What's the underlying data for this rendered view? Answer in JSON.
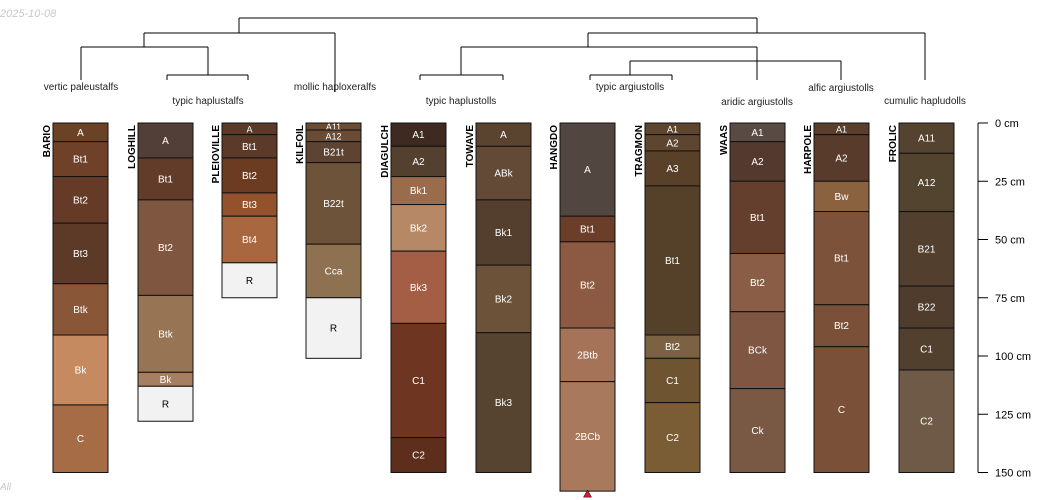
{
  "date_text": "2025-10-08",
  "corner_text": "All",
  "chart_data": {
    "type": "soil-profile-sketch",
    "depth_unit": "cm",
    "depth_range": [
      0,
      150
    ],
    "depth_axis_ticks": [
      {
        "depth": 0,
        "label": "0 cm"
      },
      {
        "depth": 25,
        "label": "25 cm"
      },
      {
        "depth": 50,
        "label": "50 cm"
      },
      {
        "depth": 75,
        "label": "75 cm"
      },
      {
        "depth": 100,
        "label": "100 cm"
      },
      {
        "depth": 125,
        "label": "125 cm"
      },
      {
        "depth": 150,
        "label": "150 cm"
      }
    ],
    "taxa": [
      "vertic paleustalfs",
      "typic haplustalfs",
      "mollic haploxeralfs",
      "typic haplustolls",
      "typic argiustolls",
      "aridic argiustolls",
      "alfic argiustolls",
      "cumulic hapludolls"
    ],
    "profiles": [
      {
        "name": "BARIO",
        "horizons": [
          {
            "name": "A",
            "top": 0,
            "bottom": 8,
            "color": "#6b4226"
          },
          {
            "name": "Bt1",
            "top": 8,
            "bottom": 23,
            "color": "#6f4128"
          },
          {
            "name": "Bt2",
            "top": 23,
            "bottom": 43,
            "color": "#653a26"
          },
          {
            "name": "Bt3",
            "top": 43,
            "bottom": 69,
            "color": "#5c3a27"
          },
          {
            "name": "Btk",
            "top": 69,
            "bottom": 91,
            "color": "#8a5638"
          },
          {
            "name": "Bk",
            "top": 91,
            "bottom": 121,
            "color": "#c58a5f"
          },
          {
            "name": "C",
            "top": 121,
            "bottom": 150,
            "color": "#a56c45"
          }
        ]
      },
      {
        "name": "LOGHILL",
        "horizons": [
          {
            "name": "A",
            "top": 0,
            "bottom": 15,
            "color": "#524038"
          },
          {
            "name": "Bt1",
            "top": 15,
            "bottom": 33,
            "color": "#633c29"
          },
          {
            "name": "Bt2",
            "top": 33,
            "bottom": 74,
            "color": "#7f5640"
          },
          {
            "name": "Btk",
            "top": 74,
            "bottom": 107,
            "color": "#977454"
          },
          {
            "name": "Bk",
            "top": 107,
            "bottom": 113,
            "color": "#a67e62"
          },
          {
            "name": "R",
            "top": 113,
            "bottom": 128,
            "color": "#f2f2f2"
          }
        ]
      },
      {
        "name": "PLEIOVILLE",
        "horizons": [
          {
            "name": "A",
            "top": 0,
            "bottom": 5,
            "color": "#5a3a28"
          },
          {
            "name": "Bt1",
            "top": 5,
            "bottom": 15,
            "color": "#5c3a2a"
          },
          {
            "name": "Bt2",
            "top": 15,
            "bottom": 30,
            "color": "#6c3c22"
          },
          {
            "name": "Bt3",
            "top": 30,
            "bottom": 40,
            "color": "#93522c"
          },
          {
            "name": "Bt4",
            "top": 40,
            "bottom": 60,
            "color": "#a8673f"
          },
          {
            "name": "R",
            "top": 60,
            "bottom": 75,
            "color": "#f2f2f2"
          }
        ]
      },
      {
        "name": "KILFOIL",
        "horizons": [
          {
            "name": "A11",
            "top": 0,
            "bottom": 3,
            "color": "#6a4c34"
          },
          {
            "name": "A12",
            "top": 3,
            "bottom": 8,
            "color": "#6a4c34"
          },
          {
            "name": "B21t",
            "top": 8,
            "bottom": 17,
            "color": "#5d4432"
          },
          {
            "name": "B22t",
            "top": 17,
            "bottom": 52,
            "color": "#6d5339"
          },
          {
            "name": "Cca",
            "top": 52,
            "bottom": 75,
            "color": "#8e7150"
          },
          {
            "name": "R",
            "top": 75,
            "bottom": 101,
            "color": "#f2f2f2"
          }
        ]
      },
      {
        "name": "DIAGULCH",
        "horizons": [
          {
            "name": "A1",
            "top": 0,
            "bottom": 10,
            "color": "#3e2a20"
          },
          {
            "name": "A2",
            "top": 10,
            "bottom": 23,
            "color": "#54402f"
          },
          {
            "name": "Bk1",
            "top": 23,
            "bottom": 35,
            "color": "#9a6c4c"
          },
          {
            "name": "Bk2",
            "top": 35,
            "bottom": 55,
            "color": "#b68866"
          },
          {
            "name": "Bk3",
            "top": 55,
            "bottom": 86,
            "color": "#a35e45"
          },
          {
            "name": "C1",
            "top": 86,
            "bottom": 135,
            "color": "#6e3521"
          },
          {
            "name": "C2",
            "top": 135,
            "bottom": 150,
            "color": "#5e2e1d"
          }
        ]
      },
      {
        "name": "TOWAVE",
        "horizons": [
          {
            "name": "A",
            "top": 0,
            "bottom": 10,
            "color": "#5a432f"
          },
          {
            "name": "ABk",
            "top": 10,
            "bottom": 33,
            "color": "#634a36"
          },
          {
            "name": "Bk1",
            "top": 33,
            "bottom": 61,
            "color": "#543f2e"
          },
          {
            "name": "Bk2",
            "top": 61,
            "bottom": 90,
            "color": "#6b5238"
          },
          {
            "name": "Bk3",
            "top": 90,
            "bottom": 150,
            "color": "#574430"
          }
        ]
      },
      {
        "name": "HANGDO",
        "horizons": [
          {
            "name": "A",
            "top": 0,
            "bottom": 40,
            "color": "#524640"
          },
          {
            "name": "Bt1",
            "top": 40,
            "bottom": 51,
            "color": "#6b3e2a"
          },
          {
            "name": "Bt2",
            "top": 51,
            "bottom": 88,
            "color": "#8c5a43"
          },
          {
            "name": "2Btb",
            "top": 88,
            "bottom": 111,
            "color": "#a57358"
          },
          {
            "name": "2BCb",
            "top": 111,
            "bottom": 158,
            "color": "#a8795c"
          }
        ]
      },
      {
        "name": "TRAGMON",
        "horizons": [
          {
            "name": "A1",
            "top": 0,
            "bottom": 5,
            "color": "#5d4530"
          },
          {
            "name": "A2",
            "top": 5,
            "bottom": 12,
            "color": "#5d4530"
          },
          {
            "name": "A3",
            "top": 12,
            "bottom": 27,
            "color": "#594129"
          },
          {
            "name": "Bt1",
            "top": 27,
            "bottom": 91,
            "color": "#554029"
          },
          {
            "name": "Bt2",
            "top": 91,
            "bottom": 101,
            "color": "#7a6242"
          },
          {
            "name": "C1",
            "top": 101,
            "bottom": 120,
            "color": "#6e5431"
          },
          {
            "name": "C2",
            "top": 120,
            "bottom": 150,
            "color": "#7a5c35"
          }
        ]
      },
      {
        "name": "WAAS",
        "horizons": [
          {
            "name": "A1",
            "top": 0,
            "bottom": 8,
            "color": "#5a4a44"
          },
          {
            "name": "A2",
            "top": 8,
            "bottom": 25,
            "color": "#543a2e"
          },
          {
            "name": "Bt1",
            "top": 25,
            "bottom": 56,
            "color": "#643f2d"
          },
          {
            "name": "Bt2",
            "top": 56,
            "bottom": 81,
            "color": "#8a5d46"
          },
          {
            "name": "BCk",
            "top": 81,
            "bottom": 114,
            "color": "#7e5641"
          },
          {
            "name": "Ck",
            "top": 114,
            "bottom": 150,
            "color": "#7a5944"
          }
        ]
      },
      {
        "name": "HARPOLE",
        "horizons": [
          {
            "name": "A1",
            "top": 0,
            "bottom": 5,
            "color": "#5a3f2d"
          },
          {
            "name": "A2",
            "top": 5,
            "bottom": 25,
            "color": "#583b2a"
          },
          {
            "name": "Bw",
            "top": 25,
            "bottom": 38,
            "color": "#8a6240"
          },
          {
            "name": "Bt1",
            "top": 38,
            "bottom": 78,
            "color": "#7d523b"
          },
          {
            "name": "Bt2",
            "top": 78,
            "bottom": 96,
            "color": "#7a5039"
          },
          {
            "name": "C",
            "top": 96,
            "bottom": 150,
            "color": "#7a5038"
          }
        ]
      },
      {
        "name": "FROLIC",
        "horizons": [
          {
            "name": "A11",
            "top": 0,
            "bottom": 13,
            "color": "#54442f"
          },
          {
            "name": "A12",
            "top": 13,
            "bottom": 38,
            "color": "#534430"
          },
          {
            "name": "B21",
            "top": 38,
            "bottom": 70,
            "color": "#523f2e"
          },
          {
            "name": "B22",
            "top": 70,
            "bottom": 88,
            "color": "#4f3c2c"
          },
          {
            "name": "C1",
            "top": 88,
            "bottom": 106,
            "color": "#52402e"
          },
          {
            "name": "C2",
            "top": 106,
            "bottom": 150,
            "color": "#6e5a46"
          }
        ]
      }
    ]
  }
}
